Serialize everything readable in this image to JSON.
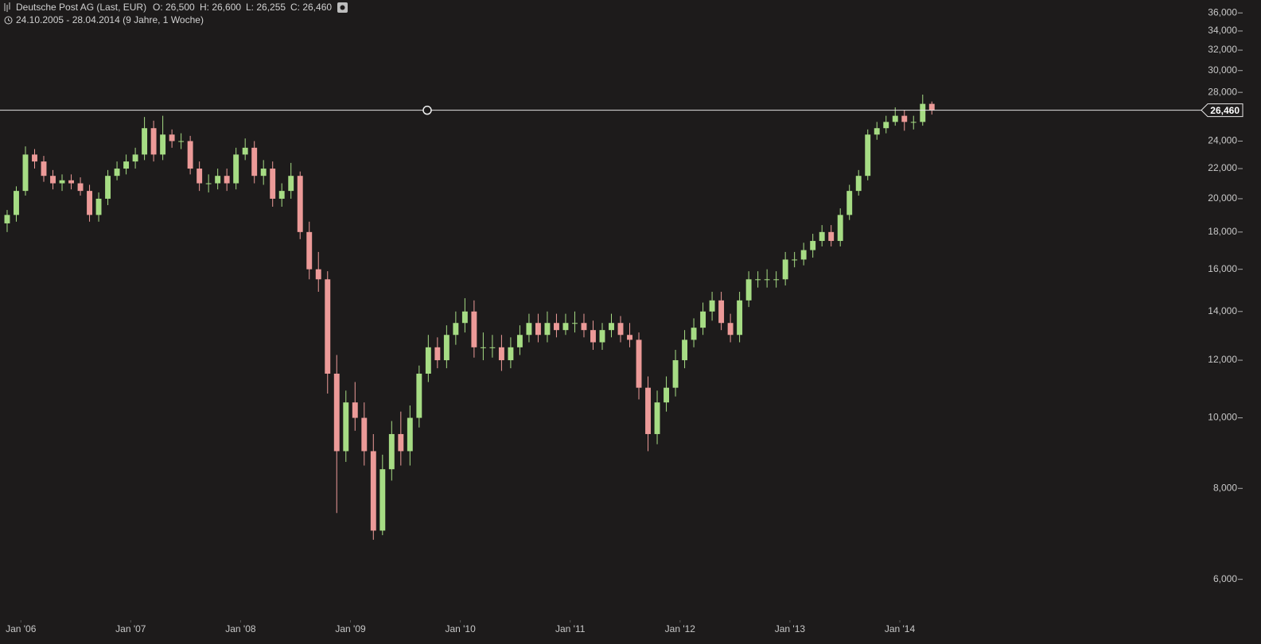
{
  "chart_data": {
    "type": "candlestick",
    "title": "Deutsche Post AG (Last, EUR)",
    "quote": [
      {
        "value": 26.5,
        "label": "O: 26,500"
      },
      {
        "value": 26.6,
        "label": "H: 26,600"
      },
      {
        "value": 26.255,
        "label": "L: 26,255"
      },
      {
        "value": 26.46,
        "label": "C: 26,460"
      }
    ],
    "subtitle": "24.10.2005 - 28.04.2014 (9 Jahre, 1 Woche)",
    "last": {
      "value": 26.46,
      "label": "26,460"
    },
    "up_color": "#a6dc84",
    "down_color": "#ec9a98",
    "log_scale": true,
    "x": [
      "2005-11",
      "2005-12",
      "2006-01",
      "2006-02",
      "2006-03",
      "2006-04",
      "2006-05",
      "2006-06",
      "2006-07",
      "2006-08",
      "2006-09",
      "2006-10",
      "2006-11",
      "2006-12",
      "2007-01",
      "2007-02",
      "2007-03",
      "2007-04",
      "2007-05",
      "2007-06",
      "2007-07",
      "2007-08",
      "2007-09",
      "2007-10",
      "2007-11",
      "2007-12",
      "2008-01",
      "2008-02",
      "2008-03",
      "2008-04",
      "2008-05",
      "2008-06",
      "2008-07",
      "2008-08",
      "2008-09",
      "2008-10",
      "2008-11",
      "2008-12",
      "2009-01",
      "2009-02",
      "2009-03",
      "2009-04",
      "2009-05",
      "2009-06",
      "2009-07",
      "2009-08",
      "2009-09",
      "2009-10",
      "2009-11",
      "2009-12",
      "2010-01",
      "2010-02",
      "2010-03",
      "2010-04",
      "2010-05",
      "2010-06",
      "2010-07",
      "2010-08",
      "2010-09",
      "2010-10",
      "2010-11",
      "2010-12",
      "2011-01",
      "2011-02",
      "2011-03",
      "2011-04",
      "2011-05",
      "2011-06",
      "2011-07",
      "2011-08",
      "2011-09",
      "2011-10",
      "2011-11",
      "2011-12",
      "2012-01",
      "2012-02",
      "2012-03",
      "2012-04",
      "2012-05",
      "2012-06",
      "2012-07",
      "2012-08",
      "2012-09",
      "2012-10",
      "2012-11",
      "2012-12",
      "2013-01",
      "2013-02",
      "2013-03",
      "2013-04",
      "2013-05",
      "2013-06",
      "2013-07",
      "2013-08",
      "2013-09",
      "2013-10",
      "2013-11",
      "2013-12",
      "2014-01",
      "2014-02",
      "2014-03",
      "2014-04"
    ],
    "open": [
      18.5,
      19.0,
      20.5,
      23.0,
      22.5,
      21.5,
      21.0,
      21.2,
      21.0,
      20.5,
      19.0,
      20.0,
      21.5,
      22.0,
      22.5,
      23.0,
      25.0,
      23.0,
      24.5,
      24.0,
      24.0,
      22.0,
      21.0,
      21.0,
      21.5,
      21.0,
      23.0,
      23.5,
      21.5,
      22.0,
      20.0,
      20.5,
      21.5,
      18.0,
      16.0,
      15.5,
      11.5,
      9.0,
      10.5,
      10.0,
      9.0,
      7.0,
      8.5,
      9.5,
      9.0,
      10.0,
      11.5,
      12.5,
      12.0,
      13.0,
      13.5,
      14.0,
      12.5,
      12.5,
      12.5,
      12.0,
      12.5,
      13.0,
      13.5,
      13.0,
      13.5,
      13.2,
      13.5,
      13.5,
      13.2,
      12.7,
      13.2,
      13.5,
      13.0,
      12.8,
      11.0,
      9.5,
      10.5,
      11.0,
      12.0,
      12.8,
      13.3,
      14.0,
      14.5,
      13.5,
      13.0,
      14.5,
      15.5,
      15.5,
      15.5,
      15.5,
      16.5,
      16.5,
      17.0,
      17.5,
      18.0,
      17.5,
      19.0,
      20.5,
      21.5,
      24.5,
      25.0,
      25.5,
      26.0,
      25.5,
      25.5,
      27.0
    ],
    "high": [
      19.3,
      20.8,
      23.6,
      23.4,
      22.9,
      21.9,
      21.6,
      21.6,
      21.4,
      20.9,
      20.4,
      21.9,
      22.5,
      23.0,
      23.5,
      25.9,
      25.6,
      26.0,
      24.9,
      24.6,
      24.4,
      22.5,
      21.6,
      22.0,
      22.0,
      23.5,
      24.2,
      24.0,
      22.6,
      22.5,
      21.0,
      22.4,
      21.8,
      18.6,
      16.9,
      15.9,
      12.2,
      10.9,
      11.2,
      10.5,
      9.5,
      8.9,
      9.9,
      10.2,
      10.4,
      11.8,
      13.0,
      12.9,
      13.4,
      14.0,
      14.6,
      14.5,
      13.1,
      13.0,
      13.0,
      12.9,
      13.4,
      13.9,
      13.9,
      14.0,
      13.9,
      13.9,
      14.0,
      13.9,
      13.6,
      13.5,
      13.9,
      13.8,
      13.5,
      13.1,
      11.4,
      10.9,
      11.4,
      12.4,
      13.2,
      13.7,
      14.4,
      14.9,
      14.9,
      13.9,
      14.9,
      15.9,
      15.9,
      16.0,
      15.9,
      16.9,
      16.9,
      17.4,
      17.9,
      18.4,
      18.4,
      19.4,
      20.9,
      21.9,
      24.9,
      25.5,
      26.0,
      26.7,
      26.5,
      26.0,
      27.8,
      27.2
    ],
    "low": [
      18.0,
      18.6,
      20.2,
      22.0,
      21.1,
      20.6,
      20.5,
      20.6,
      20.2,
      18.6,
      18.6,
      19.6,
      21.2,
      21.6,
      22.0,
      22.6,
      22.5,
      22.6,
      23.5,
      23.4,
      21.6,
      20.5,
      20.4,
      20.6,
      20.5,
      20.6,
      22.6,
      21.0,
      20.9,
      19.5,
      19.5,
      20.0,
      17.6,
      15.5,
      14.9,
      10.8,
      7.4,
      8.7,
      9.6,
      8.6,
      6.8,
      6.9,
      8.2,
      8.6,
      8.6,
      9.7,
      11.2,
      11.7,
      11.7,
      12.6,
      13.1,
      12.1,
      12.0,
      12.1,
      11.6,
      11.7,
      12.2,
      12.7,
      12.7,
      12.7,
      12.9,
      13.0,
      13.1,
      12.9,
      12.4,
      12.4,
      12.9,
      12.7,
      12.5,
      10.6,
      9.0,
      9.2,
      10.2,
      10.7,
      11.7,
      12.5,
      13.0,
      13.6,
      13.2,
      12.7,
      12.7,
      14.2,
      15.1,
      15.1,
      15.1,
      15.2,
      16.1,
      16.2,
      16.6,
      17.2,
      17.2,
      17.2,
      18.7,
      20.2,
      21.2,
      24.1,
      24.6,
      25.2,
      24.8,
      24.9,
      25.2,
      26.1
    ],
    "close": [
      19.0,
      20.5,
      23.0,
      22.5,
      21.5,
      21.0,
      21.2,
      21.0,
      20.5,
      19.0,
      20.0,
      21.5,
      22.0,
      22.5,
      23.0,
      25.0,
      23.0,
      24.5,
      24.0,
      24.0,
      22.0,
      21.0,
      21.0,
      21.5,
      21.0,
      23.0,
      23.5,
      21.5,
      22.0,
      20.0,
      20.5,
      21.5,
      18.0,
      16.0,
      15.5,
      11.5,
      9.0,
      10.5,
      10.0,
      9.0,
      7.0,
      8.5,
      9.5,
      9.0,
      10.0,
      11.5,
      12.5,
      12.0,
      13.0,
      13.5,
      14.0,
      12.5,
      12.5,
      12.5,
      12.0,
      12.5,
      13.0,
      13.5,
      13.0,
      13.5,
      13.2,
      13.5,
      13.5,
      13.2,
      12.7,
      13.2,
      13.5,
      13.0,
      12.8,
      11.0,
      9.5,
      10.5,
      11.0,
      12.0,
      12.8,
      13.3,
      14.0,
      14.5,
      13.5,
      13.0,
      14.5,
      15.5,
      15.5,
      15.5,
      15.5,
      16.5,
      16.5,
      17.0,
      17.5,
      18.0,
      17.5,
      19.0,
      20.5,
      21.5,
      24.5,
      25.0,
      25.5,
      26.0,
      25.5,
      25.5,
      27.0,
      26.46
    ],
    "xlim": [
      2005.81,
      2016.73
    ],
    "xticks": [
      {
        "value": 2006,
        "label": "Jan '06"
      },
      {
        "value": 2007,
        "label": "Jan '07"
      },
      {
        "value": 2008,
        "label": "Jan '08"
      },
      {
        "value": 2009,
        "label": "Jan '09"
      },
      {
        "value": 2010,
        "label": "Jan '10"
      },
      {
        "value": 2011,
        "label": "Jan '11"
      },
      {
        "value": 2012,
        "label": "Jan '12"
      },
      {
        "value": 2013,
        "label": "Jan '13"
      },
      {
        "value": 2014,
        "label": "Jan '14"
      }
    ],
    "ylim": [
      5.3,
      37.5
    ],
    "yticks": [
      {
        "value": 6,
        "label": "6,000"
      },
      {
        "value": 8,
        "label": "8,000"
      },
      {
        "value": 10,
        "label": "10,000"
      },
      {
        "value": 12,
        "label": "12,000"
      },
      {
        "value": 14,
        "label": "14,000"
      },
      {
        "value": 16,
        "label": "16,000"
      },
      {
        "value": 18,
        "label": "18,000"
      },
      {
        "value": 20,
        "label": "20,000"
      },
      {
        "value": 22,
        "label": "22,000"
      },
      {
        "value": 24,
        "label": "24,000"
      },
      {
        "value": 28,
        "label": "28,000"
      },
      {
        "value": 30,
        "label": "30,000"
      },
      {
        "value": 32,
        "label": "32,000"
      },
      {
        "value": 34,
        "label": "34,000"
      },
      {
        "value": 36,
        "label": "36,000"
      }
    ]
  }
}
